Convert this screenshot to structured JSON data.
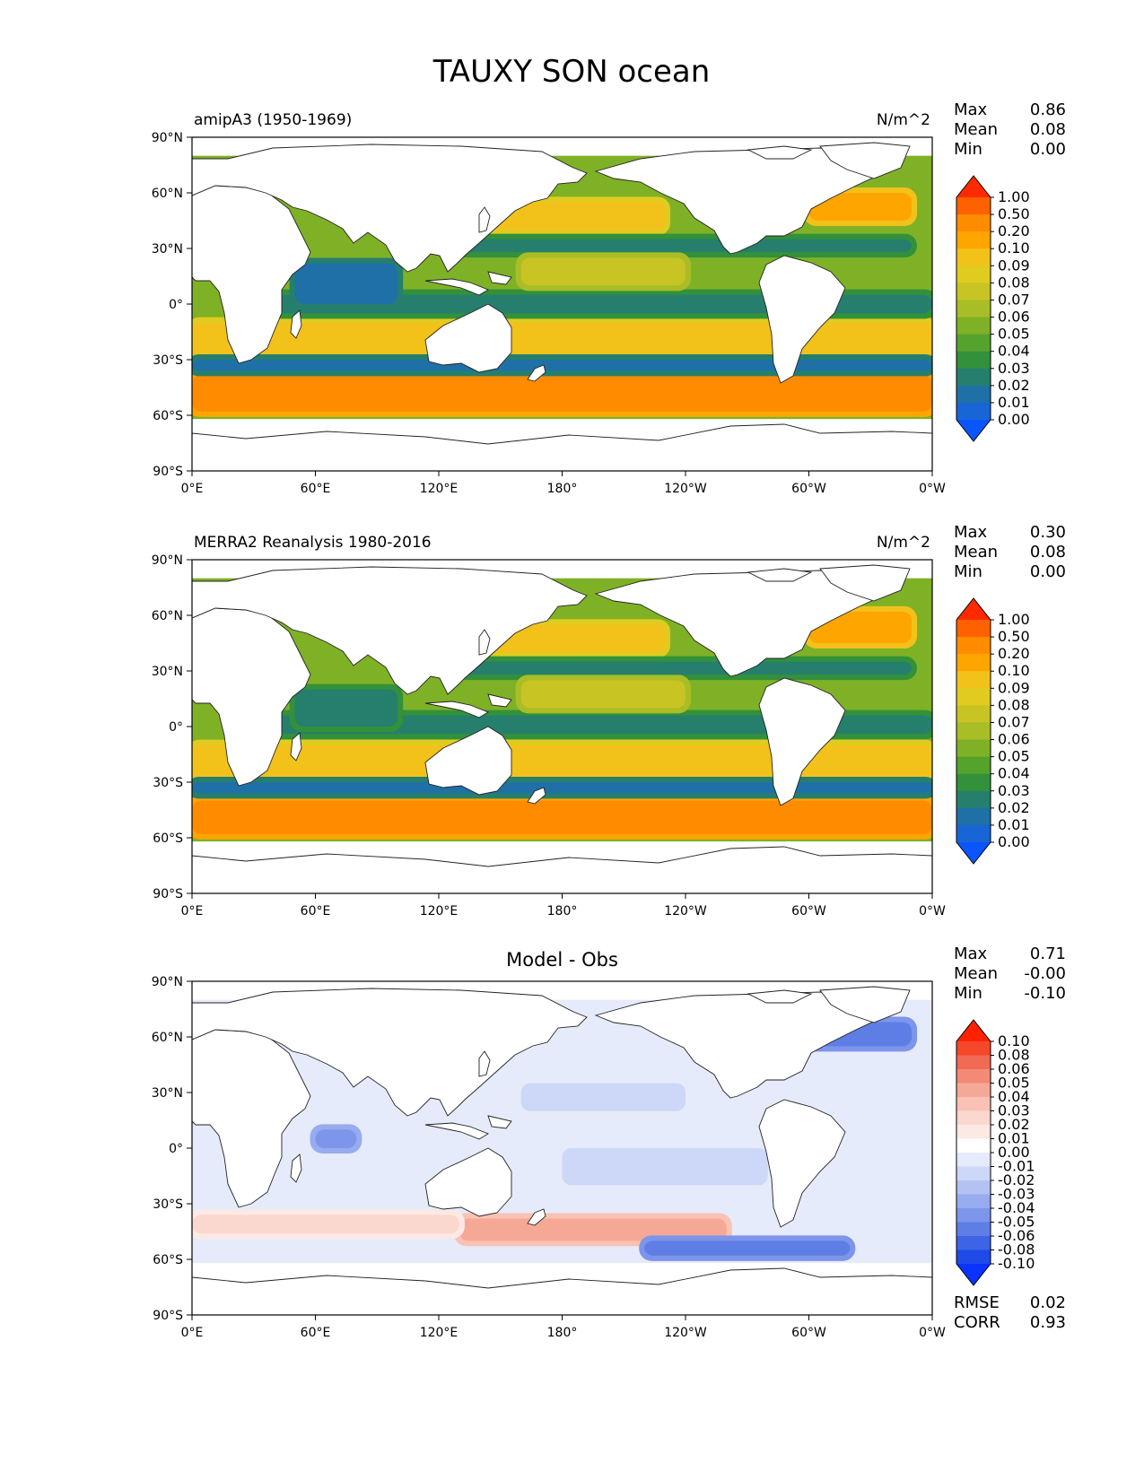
{
  "figure": {
    "title": "TAUXY SON ocean"
  },
  "colors": {
    "land": "#ffffff",
    "coast": "#222222",
    "frame": "#000000",
    "ice": "#ffffff"
  },
  "chart_data": [
    {
      "type": "heatmap",
      "id": "model",
      "label_left": "amipA3 (1950-1969)",
      "units": "N/m^2",
      "center_title": "",
      "stats": [
        {
          "label": "Max",
          "value": "0.86"
        },
        {
          "label": "Mean",
          "value": "0.08"
        },
        {
          "label": "Min",
          "value": "0.00"
        }
      ],
      "footer_stats": [],
      "colorbar": {
        "levels": [
          "1.00",
          "0.50",
          "0.20",
          "0.10",
          "0.09",
          "0.08",
          "0.07",
          "0.06",
          "0.05",
          "0.04",
          "0.03",
          "0.02",
          "0.01",
          "0.00"
        ],
        "colors": [
          "#ff2a00",
          "#ff6100",
          "#ff8c00",
          "#ffa500",
          "#f2c21a",
          "#e0cc20",
          "#c7c423",
          "#a8bd26",
          "#7fb126",
          "#55a32c",
          "#32913a",
          "#267f6d",
          "#1f70a6",
          "#1866d6",
          "#0b55ff"
        ]
      },
      "fields": [
        {
          "name": "southern-ocean-belt",
          "lat": [
            -58,
            -38
          ],
          "lon": [
            0,
            360
          ],
          "level": 2
        },
        {
          "name": "trade-wind-south-band",
          "lat": [
            -30,
            -10
          ],
          "lon": [
            0,
            360
          ],
          "level": 4
        },
        {
          "name": "north-pacific-westerlies",
          "lat": [
            40,
            55
          ],
          "lon": [
            140,
            230
          ],
          "level": 4
        },
        {
          "name": "north-atlantic-westerlies",
          "lat": [
            45,
            60
          ],
          "lon": [
            300,
            350
          ],
          "level": 3
        },
        {
          "name": "equatorial-doldrums",
          "lat": [
            -5,
            5
          ],
          "lon": [
            40,
            360
          ],
          "level": 11
        },
        {
          "name": "subtropical-calm-north",
          "lat": [
            28,
            35
          ],
          "lon": [
            130,
            350
          ],
          "level": 11
        },
        {
          "name": "subtropical-calm-south",
          "lat": [
            -36,
            -30
          ],
          "lon": [
            0,
            360
          ],
          "level": 12
        },
        {
          "name": "indian-ocean-low",
          "lat": [
            0,
            22
          ],
          "lon": [
            50,
            100
          ],
          "level": 12
        },
        {
          "name": "north-pacific-trades",
          "lat": [
            10,
            25
          ],
          "lon": [
            160,
            240
          ],
          "level": 6
        }
      ],
      "ranges": {
        "lat": [
          -90,
          90
        ],
        "lon": [
          0,
          360
        ]
      }
    },
    {
      "type": "heatmap",
      "id": "obs",
      "label_left": "MERRA2 Reanalysis 1980-2016",
      "units": "N/m^2",
      "center_title": "",
      "stats": [
        {
          "label": "Max",
          "value": "0.30"
        },
        {
          "label": "Mean",
          "value": "0.08"
        },
        {
          "label": "Min",
          "value": "0.00"
        }
      ],
      "footer_stats": [],
      "colorbar": {
        "levels": [
          "1.00",
          "0.50",
          "0.20",
          "0.10",
          "0.09",
          "0.08",
          "0.07",
          "0.06",
          "0.05",
          "0.04",
          "0.03",
          "0.02",
          "0.01",
          "0.00"
        ],
        "colors": [
          "#ff2a00",
          "#ff6100",
          "#ff8c00",
          "#ffa500",
          "#f2c21a",
          "#e0cc20",
          "#c7c423",
          "#a8bd26",
          "#7fb126",
          "#55a32c",
          "#32913a",
          "#267f6d",
          "#1f70a6",
          "#1866d6",
          "#0b55ff"
        ]
      },
      "fields": [
        {
          "name": "southern-ocean-belt",
          "lat": [
            -58,
            -40
          ],
          "lon": [
            0,
            360
          ],
          "level": 2
        },
        {
          "name": "trade-wind-south-band",
          "lat": [
            -28,
            -10
          ],
          "lon": [
            0,
            360
          ],
          "level": 4
        },
        {
          "name": "north-pacific-westerlies",
          "lat": [
            40,
            55
          ],
          "lon": [
            140,
            230
          ],
          "level": 4
        },
        {
          "name": "north-atlantic-westerlies",
          "lat": [
            45,
            62
          ],
          "lon": [
            300,
            350
          ],
          "level": 3
        },
        {
          "name": "equatorial-doldrums",
          "lat": [
            -4,
            6
          ],
          "lon": [
            40,
            360
          ],
          "level": 11
        },
        {
          "name": "subtropical-calm-north",
          "lat": [
            28,
            35
          ],
          "lon": [
            130,
            350
          ],
          "level": 11
        },
        {
          "name": "subtropical-calm-south",
          "lat": [
            -36,
            -30
          ],
          "lon": [
            0,
            360
          ],
          "level": 12
        },
        {
          "name": "indian-ocean-low",
          "lat": [
            0,
            20
          ],
          "lon": [
            50,
            100
          ],
          "level": 11
        },
        {
          "name": "north-pacific-trades",
          "lat": [
            10,
            25
          ],
          "lon": [
            160,
            240
          ],
          "level": 6
        }
      ],
      "ranges": {
        "lat": [
          -90,
          90
        ],
        "lon": [
          0,
          360
        ]
      }
    },
    {
      "type": "heatmap",
      "id": "diff",
      "label_left": "",
      "units": "",
      "center_title": "Model - Obs",
      "stats": [
        {
          "label": "Max",
          "value": "0.71"
        },
        {
          "label": "Mean",
          "value": "-0.00"
        },
        {
          "label": "Min",
          "value": "-0.10"
        }
      ],
      "footer_stats": [
        {
          "label": "RMSE",
          "value": "0.02"
        },
        {
          "label": "CORR",
          "value": "0.93"
        }
      ],
      "colorbar": {
        "levels": [
          "0.10",
          "0.08",
          "0.06",
          "0.05",
          "0.04",
          "0.03",
          "0.02",
          "0.01",
          "0.00",
          "-0.01",
          "-0.02",
          "-0.03",
          "-0.04",
          "-0.05",
          "-0.06",
          "-0.08",
          "-0.10"
        ],
        "colors": [
          "#ff2200",
          "#f4472c",
          "#f06a55",
          "#f38a76",
          "#f6a896",
          "#f9c2b4",
          "#fbd8cf",
          "#fde9e4",
          "#ffffff",
          "#e6ebfb",
          "#cdd7f7",
          "#b3c2f3",
          "#97abef",
          "#7d95ea",
          "#5e7ee6",
          "#3c64e5",
          "#1f4ae8",
          "#0a33ff"
        ]
      },
      "fields": [
        {
          "name": "southern-ocean-positive",
          "lat": [
            -50,
            -38
          ],
          "lon": [
            130,
            260
          ],
          "level": 4
        },
        {
          "name": "southern-ocean-positive-weak",
          "lat": [
            -46,
            -36
          ],
          "lon": [
            0,
            130
          ],
          "level": 6
        },
        {
          "name": "antarctic-negative",
          "lat": [
            -58,
            -50
          ],
          "lon": [
            220,
            320
          ],
          "level": 14
        },
        {
          "name": "north-atlantic-negative",
          "lat": [
            55,
            68
          ],
          "lon": [
            300,
            350
          ],
          "level": 14
        },
        {
          "name": "indian-ocean-negative",
          "lat": [
            0,
            10
          ],
          "lon": [
            60,
            80
          ],
          "level": 13
        },
        {
          "name": "tropical-negative",
          "lat": [
            -20,
            0
          ],
          "lon": [
            180,
            280
          ],
          "level": 10
        },
        {
          "name": "north-pacific-negative",
          "lat": [
            20,
            35
          ],
          "lon": [
            160,
            240
          ],
          "level": 10
        }
      ],
      "ranges": {
        "lat": [
          -90,
          90
        ],
        "lon": [
          0,
          360
        ]
      }
    }
  ],
  "axes": {
    "lat_ticks": [
      "90°N",
      "60°N",
      "30°N",
      "0°",
      "30°S",
      "60°S",
      "90°S"
    ],
    "lon_ticks": [
      "0°E",
      "60°E",
      "120°E",
      "180°",
      "120°W",
      "60°W",
      "0°W"
    ]
  }
}
